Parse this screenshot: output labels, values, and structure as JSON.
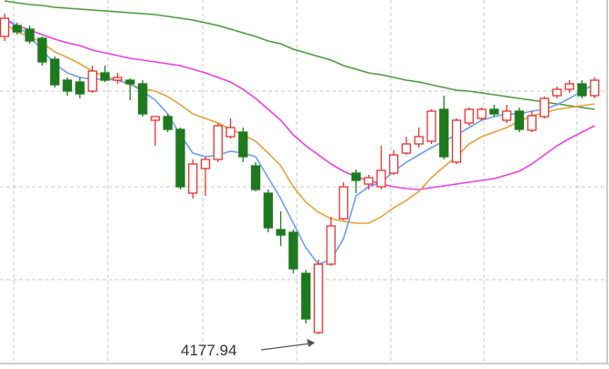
{
  "chart_data": {
    "type": "candlestick",
    "categories": [
      null,
      null,
      null,
      null,
      null,
      null,
      null,
      null,
      null,
      null,
      null,
      null,
      null,
      null,
      null,
      null,
      null,
      null,
      null,
      null,
      null,
      null,
      null,
      null,
      null,
      null,
      null,
      null,
      null,
      null,
      null,
      null,
      null,
      null,
      null,
      null,
      null,
      null,
      null,
      null,
      null,
      null,
      null,
      null,
      null,
      null,
      null,
      null
    ],
    "open": [
      4505,
      4517,
      4513,
      4503,
      4480,
      4457,
      4455,
      4445,
      4465,
      4457,
      4457,
      4453,
      4413,
      4417,
      4403,
      4333,
      4360,
      4370,
      4395,
      4400,
      4363,
      4333,
      4293,
      4290,
      4245,
      4180,
      4255,
      4305,
      4355,
      4343,
      4340,
      4355,
      4377,
      4387,
      4390,
      4425,
      4367,
      4410,
      4415,
      4425,
      4413,
      4423,
      4402,
      4417,
      4440,
      4447,
      4453,
      4440
    ],
    "high": [
      4530,
      4520,
      4517,
      4505,
      4483,
      4460,
      4460,
      4473,
      4473,
      4465,
      4459,
      4457,
      4417,
      4420,
      4405,
      4370,
      4373,
      4410,
      4415,
      4405,
      4367,
      4337,
      4313,
      4293,
      4249,
      4260,
      4307,
      4345,
      4359,
      4353,
      4385,
      4380,
      4395,
      4405,
      4425,
      4440,
      4415,
      4427,
      4427,
      4430,
      4430,
      4427,
      4423,
      4439,
      4450,
      4457,
      4457,
      4460
    ],
    "low": [
      4500,
      4507,
      4497,
      4473,
      4449,
      4440,
      4437,
      4443,
      4455,
      4453,
      4435,
      4417,
      4385,
      4400,
      4337,
      4327,
      4330,
      4367,
      4393,
      4367,
      4335,
      4290,
      4275,
      4245,
      4190,
      4177.94,
      4253,
      4303,
      4333,
      4337,
      4337,
      4353,
      4375,
      4383,
      4387,
      4370,
      4365,
      4407,
      4413,
      4417,
      4410,
      4400,
      4400,
      4415,
      4437,
      4443,
      4437,
      4437
    ],
    "close": [
      4525,
      4510,
      4500,
      4477,
      4452,
      4445,
      4442,
      4467,
      4457,
      4460,
      4453,
      4420,
      4417,
      4403,
      4340,
      4365,
      4370,
      4407,
      4405,
      4373,
      4337,
      4295,
      4287,
      4250,
      4195,
      4255,
      4297,
      4340,
      4347,
      4350,
      4358,
      4375,
      4387,
      4395,
      4423,
      4373,
      4413,
      4425,
      4425,
      4420,
      4423,
      4403,
      4418,
      4437,
      4447,
      4453,
      4440,
      4457
    ],
    "up_color": "#e8312f",
    "down_color": "#1f7a1f",
    "lines": [
      {
        "color": "#4a9a3c",
        "values": [
          4544,
          4542,
          4540,
          4539,
          4537,
          4536,
          4535,
          4534,
          4533,
          4532,
          4531,
          4530,
          4529,
          4527,
          4525,
          4523,
          4520,
          4517,
          4513,
          4509,
          4505,
          4500,
          4497,
          4491,
          4487,
          4483,
          4479,
          4473,
          4469,
          4465,
          4463,
          4460,
          4457,
          4455,
          4452,
          4449,
          4446,
          4445,
          4443,
          4441,
          4439,
          4437,
          4435,
          4433,
          4431,
          4429,
          4427,
          4425
        ]
      },
      {
        "color": "#ee3fe0",
        "values": [
          4523,
          4517,
          4512,
          4507,
          4502,
          4498,
          4495,
          4490,
          4487,
          4484,
          4481,
          4479,
          4477,
          4475,
          4473,
          4469,
          4465,
          4460,
          4455,
          4447,
          4437,
          4425,
          4413,
          4397,
          4385,
          4375,
          4365,
          4357,
          4351,
          4347,
          4343,
          4340,
          4338,
          4337,
          4339,
          4341,
          4343,
          4345,
          4347,
          4349,
          4353,
          4357,
          4365,
          4375,
          4385,
          4393,
          4400,
          4407
        ]
      },
      {
        "color": "#e8a13c",
        "values": [
          4519,
          4510,
          4505,
          4498,
          4488,
          4482,
          4475,
          4467,
          4461,
          4457,
          4452,
          4448,
          4445,
          4439,
          4430,
          4420,
          4415,
          4410,
          4403,
          4397,
          4390,
          4377,
          4363,
          4340,
          4323,
          4312,
          4305,
          4302,
          4300,
          4300,
          4307,
          4317,
          4325,
          4335,
          4350,
          4362,
          4373,
          4387,
          4395,
          4400,
          4405,
          4412,
          4418,
          4421,
          4425,
          4427,
          4429,
          4431
        ]
      },
      {
        "color": "#6f9ef0",
        "values": [
          4525,
          4517,
          4505,
          4490,
          4475,
          4465,
          4460,
          4458,
          4458,
          4457,
          4453,
          4445,
          4435,
          4420,
          4397,
          4377,
          4373,
          4375,
          4379,
          4377,
          4373,
          4350,
          4327,
          4300,
          4273,
          4255,
          4260,
          4283,
          4330,
          4340,
          4345,
          4357,
          4367,
          4375,
          4383,
          4390,
          4397,
          4405,
          4413,
          4417,
          4420,
          4420,
          4423,
          4425,
          4430,
          4437,
          4445,
          4453
        ]
      }
    ],
    "ylim": [
      4140,
      4545
    ],
    "yticks": [
      4238,
      4340,
      4445
    ],
    "grid": true
  }
}
